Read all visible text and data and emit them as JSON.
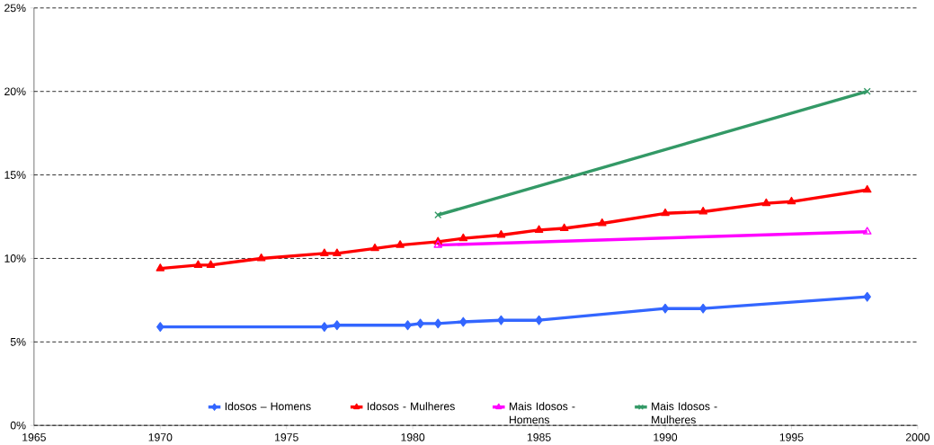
{
  "chart_data": {
    "type": "line",
    "xlim": [
      1965,
      2000
    ],
    "xticks": [
      1965,
      1970,
      1975,
      1980,
      1985,
      1990,
      1995,
      2000
    ],
    "ylim": [
      0,
      25
    ],
    "yticks": [
      {
        "value": 0,
        "label": "0%"
      },
      {
        "value": 5,
        "label": "5%"
      },
      {
        "value": 10,
        "label": "10%"
      },
      {
        "value": 15,
        "label": "15%"
      },
      {
        "value": 20,
        "label": "20%"
      },
      {
        "value": 25,
        "label": "25%"
      }
    ],
    "grid": "y",
    "legend": "bottom",
    "line_style": "solid",
    "series": [
      {
        "name": "Idosos – Homens",
        "color": "#3366ff",
        "marker": "diamond",
        "x": [
          1970,
          1976.5,
          1977,
          1979.8,
          1980.3,
          1981,
          1982,
          1983.5,
          1985,
          1990,
          1991.5,
          1998
        ],
        "values": [
          5.9,
          5.9,
          6.0,
          6.0,
          6.1,
          6.1,
          6.2,
          6.3,
          6.3,
          7.0,
          7.0,
          7.7
        ]
      },
      {
        "name": "Idosos - Mulheres",
        "color": "#ff0000",
        "marker": "triangle",
        "x": [
          1970,
          1971.5,
          1972,
          1974,
          1976.5,
          1977,
          1978.5,
          1979.5,
          1981,
          1982,
          1983.5,
          1985,
          1986,
          1987.5,
          1990,
          1991.5,
          1994,
          1995,
          1998
        ],
        "values": [
          9.4,
          9.6,
          9.6,
          10.0,
          10.3,
          10.3,
          10.6,
          10.8,
          11.0,
          11.2,
          11.4,
          11.7,
          11.8,
          12.1,
          12.7,
          12.8,
          13.3,
          13.4,
          14.1
        ]
      },
      {
        "name": "Mais Idosos - Homens",
        "color": "#ff00ff",
        "marker": "triangle-open",
        "x": [
          1981,
          1998
        ],
        "values": [
          10.8,
          11.6
        ]
      },
      {
        "name": "Mais Idosos - Mulheres",
        "color": "#339966",
        "marker": "cross",
        "x": [
          1981,
          1998
        ],
        "values": [
          12.6,
          20.0
        ]
      }
    ]
  }
}
